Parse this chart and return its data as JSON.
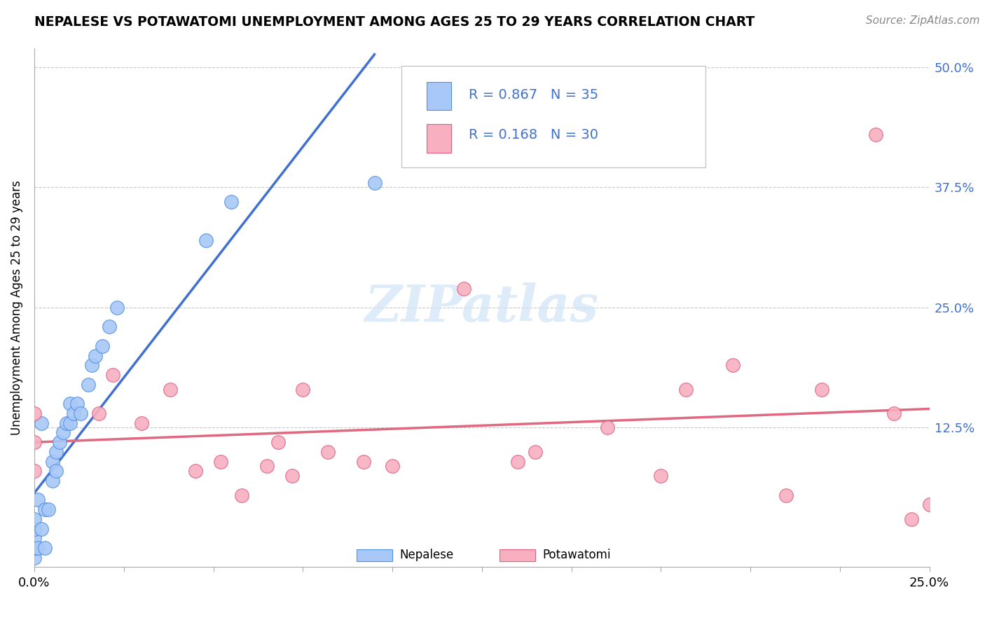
{
  "title": "NEPALESE VS POTAWATOMI UNEMPLOYMENT AMONG AGES 25 TO 29 YEARS CORRELATION CHART",
  "source_text": "Source: ZipAtlas.com",
  "ylabel": "Unemployment Among Ages 25 to 29 years",
  "xlim": [
    0.0,
    0.25
  ],
  "ylim": [
    -0.02,
    0.52
  ],
  "ytick_positions": [
    0.0,
    0.125,
    0.25,
    0.375,
    0.5
  ],
  "ytick_labels": [
    "",
    "12.5%",
    "25.0%",
    "37.5%",
    "50.0%"
  ],
  "xtick_positions": [
    0.0,
    0.025,
    0.05,
    0.075,
    0.1,
    0.125,
    0.15,
    0.175,
    0.2,
    0.225,
    0.25
  ],
  "grid_color": "#c8c8c8",
  "background_color": "#ffffff",
  "nepalese_fill": "#a8c8f8",
  "nepalese_edge": "#5090e0",
  "potawatomi_fill": "#f8b0c0",
  "potawatomi_edge": "#e06080",
  "blue_line_color": "#4070d0",
  "pink_line_color": "#e06880",
  "nepalese_R": 0.867,
  "nepalese_N": 35,
  "potawatomi_R": 0.168,
  "potawatomi_N": 30,
  "legend_color": "#4070d0",
  "watermark_color": "#d0e4f8",
  "nepalese_x": [
    0.0,
    0.0,
    0.0,
    0.0,
    0.0,
    0.0,
    0.0,
    0.001,
    0.001,
    0.002,
    0.002,
    0.003,
    0.003,
    0.004,
    0.005,
    0.005,
    0.006,
    0.006,
    0.007,
    0.008,
    0.009,
    0.01,
    0.01,
    0.011,
    0.012,
    0.013,
    0.015,
    0.016,
    0.017,
    0.019,
    0.021,
    0.023,
    0.048,
    0.055,
    0.095
  ],
  "nepalese_y": [
    -0.01,
    0.0,
    0.0,
    0.0,
    0.01,
    0.02,
    0.03,
    0.0,
    0.05,
    0.02,
    0.13,
    0.0,
    0.04,
    0.04,
    0.07,
    0.09,
    0.08,
    0.1,
    0.11,
    0.12,
    0.13,
    0.13,
    0.15,
    0.14,
    0.15,
    0.14,
    0.17,
    0.19,
    0.2,
    0.21,
    0.23,
    0.25,
    0.32,
    0.36,
    0.38
  ],
  "potawatomi_x": [
    0.0,
    0.0,
    0.0,
    0.018,
    0.022,
    0.03,
    0.038,
    0.045,
    0.052,
    0.058,
    0.065,
    0.068,
    0.072,
    0.075,
    0.082,
    0.092,
    0.1,
    0.12,
    0.135,
    0.14,
    0.16,
    0.175,
    0.182,
    0.195,
    0.21,
    0.22,
    0.235,
    0.24,
    0.245,
    0.25
  ],
  "potawatomi_y": [
    0.08,
    0.11,
    0.14,
    0.14,
    0.18,
    0.13,
    0.165,
    0.08,
    0.09,
    0.055,
    0.085,
    0.11,
    0.075,
    0.165,
    0.1,
    0.09,
    0.085,
    0.27,
    0.09,
    0.1,
    0.125,
    0.075,
    0.165,
    0.19,
    0.055,
    0.165,
    0.43,
    0.14,
    0.03,
    0.045
  ]
}
